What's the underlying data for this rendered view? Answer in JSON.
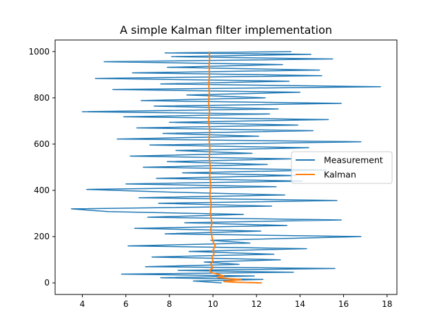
{
  "chart_data": {
    "type": "line",
    "title": "A simple Kalman filter implementation",
    "xlabel": "",
    "ylabel": "",
    "xlim": [
      2.75,
      18.45
    ],
    "ylim": [
      -50,
      1050
    ],
    "xticks": [
      4,
      6,
      8,
      10,
      12,
      14,
      16,
      18
    ],
    "yticks": [
      0,
      200,
      400,
      600,
      800,
      1000
    ],
    "grid": false,
    "legend_position": "center-right",
    "series": [
      {
        "name": "Measurement",
        "color": "#1f77b4",
        "description_values": "noisy measurements around 10 (approx. range 3.5 to 17.7)",
        "sample_points": [
          [
            10.4,
            0
          ],
          [
            9.1,
            8
          ],
          [
            12.3,
            15
          ],
          [
            7.6,
            22
          ],
          [
            11.9,
            30
          ],
          [
            5.8,
            38
          ],
          [
            13.7,
            46
          ],
          [
            8.4,
            54
          ],
          [
            15.6,
            62
          ],
          [
            6.9,
            70
          ],
          [
            11.2,
            80
          ],
          [
            9.6,
            90
          ],
          [
            13.1,
            100
          ],
          [
            7.2,
            112
          ],
          [
            12.8,
            124
          ],
          [
            8.9,
            136
          ],
          [
            14.3,
            148
          ],
          [
            6.1,
            160
          ],
          [
            11.7,
            172
          ],
          [
            9.9,
            184
          ],
          [
            16.8,
            200
          ],
          [
            7.8,
            212
          ],
          [
            12.2,
            224
          ],
          [
            6.4,
            236
          ],
          [
            13.4,
            248
          ],
          [
            8.7,
            260
          ],
          [
            15.9,
            272
          ],
          [
            7.0,
            284
          ],
          [
            11.4,
            296
          ],
          [
            5.2,
            308
          ],
          [
            3.5,
            320
          ],
          [
            12.7,
            332
          ],
          [
            7.5,
            344
          ],
          [
            15.7,
            356
          ],
          [
            6.6,
            368
          ],
          [
            13.3,
            380
          ],
          [
            8.2,
            392
          ],
          [
            4.2,
            404
          ],
          [
            12.9,
            416
          ],
          [
            6.0,
            428
          ],
          [
            14.1,
            440
          ],
          [
            7.4,
            452
          ],
          [
            13.8,
            464
          ],
          [
            8.6,
            476
          ],
          [
            15.2,
            488
          ],
          [
            6.8,
            500
          ],
          [
            12.5,
            512
          ],
          [
            7.9,
            524
          ],
          [
            13.6,
            536
          ],
          [
            6.2,
            548
          ],
          [
            11.8,
            560
          ],
          [
            8.3,
            572
          ],
          [
            14.4,
            584
          ],
          [
            7.1,
            596
          ],
          [
            16.8,
            610
          ],
          [
            5.6,
            622
          ],
          [
            12.1,
            634
          ],
          [
            7.7,
            646
          ],
          [
            14.6,
            658
          ],
          [
            6.5,
            670
          ],
          [
            13.9,
            682
          ],
          [
            8.0,
            694
          ],
          [
            15.3,
            706
          ],
          [
            5.9,
            718
          ],
          [
            12.6,
            730
          ],
          [
            4.0,
            740
          ],
          [
            13.0,
            752
          ],
          [
            7.3,
            764
          ],
          [
            15.9,
            776
          ],
          [
            6.7,
            788
          ],
          [
            12.4,
            800
          ],
          [
            8.8,
            812
          ],
          [
            14.0,
            824
          ],
          [
            5.4,
            836
          ],
          [
            17.7,
            848
          ],
          [
            7.6,
            860
          ],
          [
            13.5,
            872
          ],
          [
            4.6,
            884
          ],
          [
            15.0,
            896
          ],
          [
            6.3,
            908
          ],
          [
            14.9,
            920
          ],
          [
            7.9,
            932
          ],
          [
            13.2,
            944
          ],
          [
            5.0,
            956
          ],
          [
            15.5,
            968
          ],
          [
            8.1,
            978
          ],
          [
            14.5,
            988
          ],
          [
            7.8,
            994
          ],
          [
            13.6,
            1000
          ]
        ]
      },
      {
        "name": "Kalman",
        "color": "#ff7f0e",
        "points": [
          [
            12.25,
            0
          ],
          [
            11.0,
            3
          ],
          [
            10.5,
            6
          ],
          [
            10.9,
            10
          ],
          [
            11.3,
            14
          ],
          [
            10.8,
            18
          ],
          [
            10.2,
            24
          ],
          [
            10.5,
            30
          ],
          [
            10.2,
            38
          ],
          [
            9.9,
            46
          ],
          [
            9.85,
            55
          ],
          [
            10.0,
            65
          ],
          [
            9.9,
            80
          ],
          [
            10.0,
            95
          ],
          [
            9.95,
            110
          ],
          [
            10.05,
            125
          ],
          [
            10.0,
            140
          ],
          [
            10.1,
            160
          ],
          [
            10.0,
            180
          ],
          [
            9.95,
            200
          ],
          [
            9.9,
            230
          ],
          [
            9.95,
            260
          ],
          [
            9.88,
            300
          ],
          [
            9.92,
            340
          ],
          [
            9.86,
            380
          ],
          [
            9.9,
            420
          ],
          [
            9.85,
            460
          ],
          [
            9.88,
            500
          ],
          [
            9.83,
            540
          ],
          [
            9.86,
            580
          ],
          [
            9.82,
            620
          ],
          [
            9.85,
            660
          ],
          [
            9.8,
            700
          ],
          [
            9.84,
            740
          ],
          [
            9.8,
            780
          ],
          [
            9.83,
            820
          ],
          [
            9.81,
            860
          ],
          [
            9.84,
            900
          ],
          [
            9.82,
            940
          ],
          [
            9.85,
            970
          ],
          [
            9.83,
            1000
          ]
        ]
      }
    ]
  }
}
